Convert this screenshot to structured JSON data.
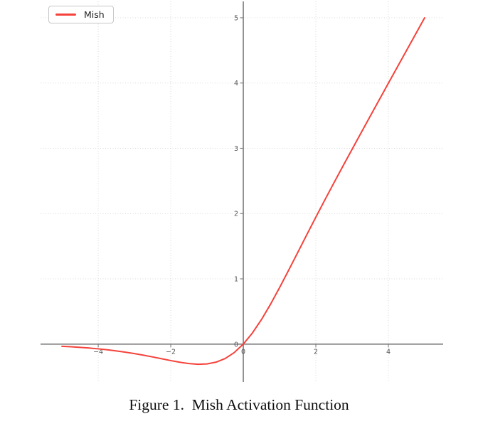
{
  "figure": {
    "caption": "Figure 1.  Mish Activation Function"
  },
  "legend": {
    "label": "Mish"
  },
  "colors": {
    "curve": "#f5423b",
    "axis": "#7a7a7a",
    "tick_label": "#555555",
    "grid": "#d9d9d9",
    "background": "#ffffff"
  },
  "chart_data": {
    "type": "line",
    "title": "",
    "xlabel": "",
    "ylabel": "",
    "xlim": [
      -5.59,
      5.51
    ],
    "ylim": [
      -0.58,
      5.25
    ],
    "x_ticks": [
      -4,
      -2,
      0,
      2,
      4
    ],
    "y_ticks": [
      0,
      1,
      2,
      3,
      4,
      5
    ],
    "grid": true,
    "legend_position": "upper-left",
    "series": [
      {
        "name": "Mish",
        "color": "#f5423b",
        "x": [
          -5.0,
          -4.75,
          -4.5,
          -4.25,
          -4.0,
          -3.75,
          -3.5,
          -3.25,
          -3.0,
          -2.75,
          -2.5,
          -2.25,
          -2.0,
          -1.75,
          -1.5,
          -1.25,
          -1.0,
          -0.75,
          -0.5,
          -0.25,
          0.0,
          0.25,
          0.5,
          0.75,
          1.0,
          1.25,
          1.5,
          1.75,
          2.0,
          2.25,
          2.5,
          2.75,
          3.0,
          3.25,
          3.5,
          3.75,
          4.0,
          4.25,
          4.5,
          4.75,
          5.0
        ],
        "y": [
          -0.0336,
          -0.0409,
          -0.0497,
          -0.0602,
          -0.0726,
          -0.0872,
          -0.1041,
          -0.1236,
          -0.1456,
          -0.1702,
          -0.1968,
          -0.2247,
          -0.2525,
          -0.278,
          -0.2981,
          -0.3084,
          -0.3034,
          -0.2764,
          -0.2208,
          -0.1299,
          0.0,
          0.1695,
          0.3753,
          0.6099,
          0.8651,
          1.1317,
          1.4031,
          1.6746,
          1.9443,
          2.21,
          2.4716,
          2.7297,
          2.985,
          3.2394,
          3.4926,
          3.7449,
          3.9965,
          4.2476,
          4.4984,
          4.7489,
          4.9993
        ]
      }
    ]
  }
}
